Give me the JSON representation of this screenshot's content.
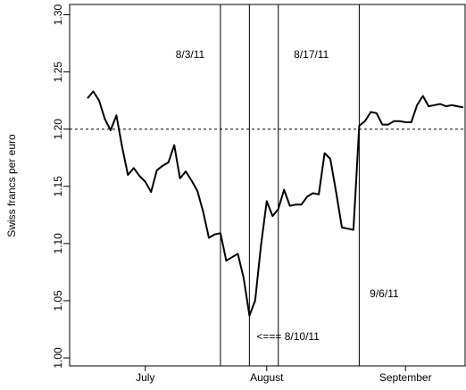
{
  "chart_data": {
    "type": "line",
    "y_label": "Swiss francs per euro",
    "categories": [
      null,
      null,
      null,
      null,
      null,
      null,
      null,
      null,
      null,
      null,
      "July",
      null,
      null,
      null,
      null,
      null,
      null,
      null,
      null,
      null,
      null,
      null,
      null,
      null,
      null,
      null,
      null,
      null,
      null,
      null,
      null,
      "August",
      null,
      null,
      null,
      null,
      null,
      null,
      null,
      null,
      null,
      null,
      null,
      null,
      null,
      null,
      null,
      null,
      null,
      null,
      null,
      null,
      null,
      null,
      null,
      "September",
      null,
      null,
      null,
      null,
      null,
      null,
      null,
      null,
      null,
      null
    ],
    "series": [
      {
        "color": "#000000",
        "values": [
          1.227,
          1.233,
          1.225,
          1.209,
          1.199,
          1.212,
          1.184,
          1.16,
          1.166,
          1.159,
          1.154,
          1.145,
          1.164,
          1.168,
          1.171,
          1.186,
          1.157,
          1.163,
          1.155,
          1.146,
          1.128,
          1.105,
          1.108,
          1.109,
          1.085,
          1.088,
          1.091,
          1.07,
          1.037,
          1.05,
          1.098,
          1.137,
          1.124,
          1.13,
          1.147,
          1.133,
          1.134,
          1.134,
          1.141,
          1.144,
          1.143,
          1.179,
          1.174,
          1.145,
          1.114,
          1.113,
          1.112,
          1.203,
          1.207,
          1.215,
          1.214,
          1.204,
          1.204,
          1.207,
          1.207,
          1.206,
          1.206,
          1.221,
          1.229,
          1.22,
          1.221,
          1.222,
          1.22,
          1.221,
          1.22,
          1.219
        ]
      }
    ],
    "ylim": [
      0.993,
      1.309
    ],
    "yticks": [
      {
        "value": 1,
        "label": "1.00"
      },
      1.05,
      {
        "value": 1.1,
        "label": "1.10"
      },
      1.15,
      {
        "value": 1.2,
        "label": "1.20"
      },
      1.25,
      {
        "value": 1.3,
        "label": "1.30"
      }
    ],
    "hline": 1.2,
    "annotations": [
      {
        "text": "8/3/11",
        "x": 23
      },
      {
        "text": "<=== 8/10/11",
        "x": 28
      },
      {
        "text": "8/17/11",
        "x": 33
      },
      {
        "text": "9/6/11",
        "x": 47
      }
    ]
  }
}
